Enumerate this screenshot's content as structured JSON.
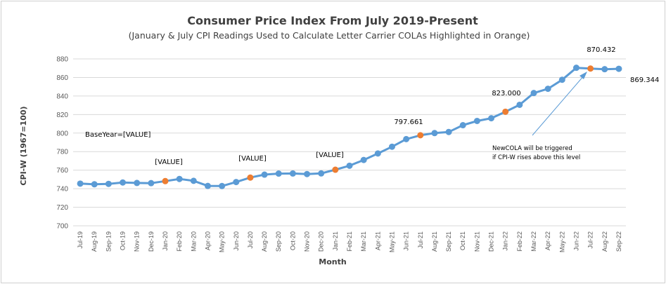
{
  "chart_data": {
    "type": "line",
    "title": "Consumer Price Index From July 2019-Present",
    "subtitle": "(January & July CPI Readings Used to Calculate Letter Carrier COLAs Highlighted in Orange)",
    "xlabel": "Month",
    "ylabel": "CPI-W (1967=100)",
    "ylim": [
      700,
      880
    ],
    "yticks": [
      700,
      720,
      740,
      760,
      780,
      800,
      820,
      840,
      860,
      880
    ],
    "grid": true,
    "categories": [
      "Jul-19",
      "Aug-19",
      "Sep-19",
      "Oct-19",
      "Nov-19",
      "Dec-19",
      "Jan-20",
      "Feb-20",
      "Mar-20",
      "Apr-20",
      "May-20",
      "Jun-20",
      "Jul-20",
      "Aug-20",
      "Sep-20",
      "Oct-20",
      "Nov-20",
      "Dec-20",
      "Jan-21",
      "Feb-21",
      "Mar-21",
      "Apr-21",
      "May-21",
      "Jun-21",
      "Jul-21",
      "Aug-21",
      "Sep-21",
      "Oct-21",
      "Nov-21",
      "Dec-21",
      "Jan-22",
      "Feb-22",
      "Mar-22",
      "Apr-22",
      "May-22",
      "Jun-22",
      "Jul-22",
      "Aug-22",
      "Sep-22"
    ],
    "series": [
      {
        "values": [
          745.5,
          744.8,
          745.2,
          746.7,
          746.2,
          746.0,
          748.2,
          750.5,
          748.5,
          743.0,
          742.9,
          747.2,
          752.0,
          755.2,
          756.3,
          756.4,
          755.8,
          756.5,
          760.5,
          764.8,
          771.0,
          778.0,
          785.3,
          793.5,
          797.661,
          800.0,
          801.2,
          808.5,
          813.1,
          816.0,
          823.0,
          830.5,
          843.2,
          847.8,
          857.5,
          870.432,
          869.6,
          868.9,
          869.344
        ],
        "color": "#5b9bd5",
        "highlight_color": "#ed7d31",
        "highlight_categories": [
          "Jan-20",
          "Jul-20",
          "Jan-21",
          "Jul-21",
          "Jan-22",
          "Jul-22"
        ]
      }
    ],
    "annotations": [
      {
        "text": "870.432",
        "category": "Jun-22"
      },
      {
        "text": "869.344",
        "category": "Sep-22"
      },
      {
        "text": "823.000",
        "category": "Jan-22"
      },
      {
        "text": "797.661",
        "category": "Jul-21"
      },
      {
        "text": "BaseYear=[VALUE]"
      },
      {
        "text": "[VALUE]",
        "category": "Jan-20"
      },
      {
        "text": "[VALUE]",
        "category": "Jul-20"
      },
      {
        "text": "[VALUE]",
        "category": "Jan-21"
      },
      {
        "text": "NewCOLA will be triggered"
      },
      {
        "text": "if CPI-W rises above this level"
      }
    ]
  }
}
